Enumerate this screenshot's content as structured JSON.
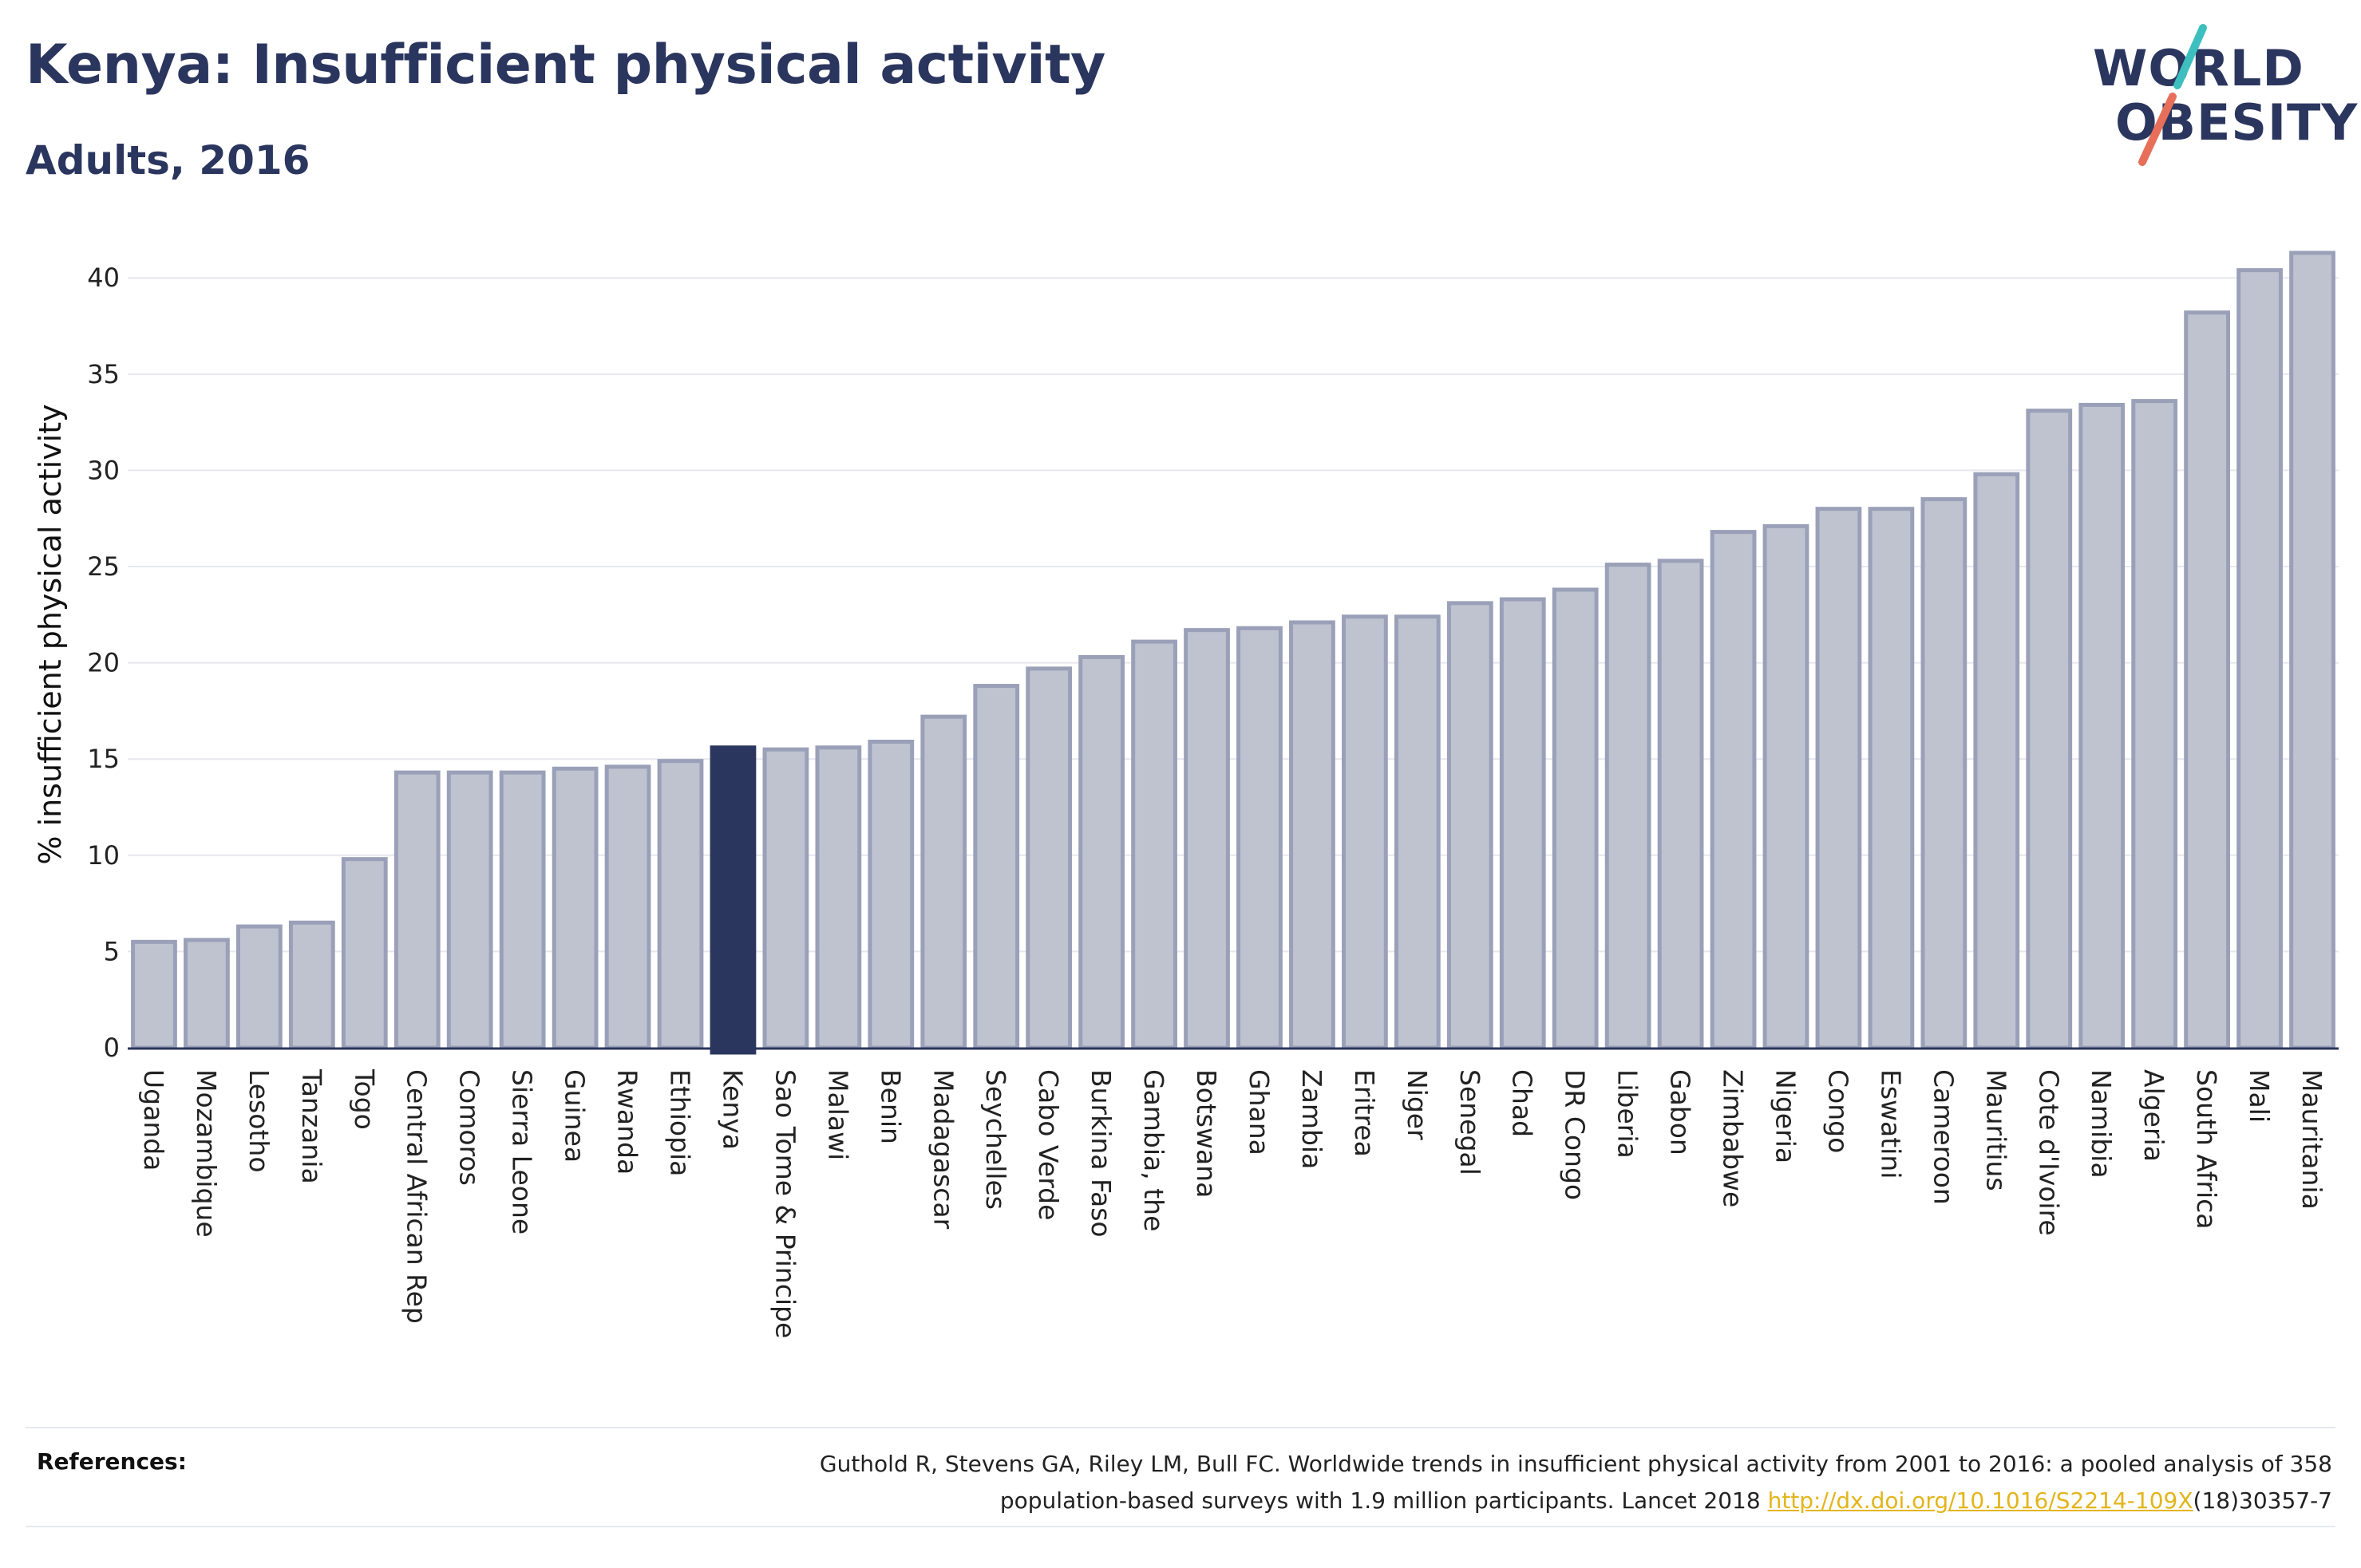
{
  "header": {
    "title": "Kenya: Insufficient physical activity",
    "subtitle": "Adults, 2016"
  },
  "logo": {
    "line1": "WORLD",
    "line2": "OBESITY",
    "slash_colors": [
      "#3dbfbf",
      "#e76f5a"
    ]
  },
  "colors": {
    "bar_default": "#bfc3d0",
    "bar_border": "#9aa0b8",
    "bar_highlight": "#2b365f",
    "grid": "#e6e8ee",
    "link": "#e3b51c"
  },
  "chart_data": {
    "type": "bar",
    "title": "Kenya: Insufficient physical activity",
    "subtitle": "Adults, 2016",
    "xlabel": "",
    "ylabel": "% insufficient physical activity",
    "ylim": [
      0,
      42
    ],
    "yticks": [
      0,
      5,
      10,
      15,
      20,
      25,
      30,
      35,
      40
    ],
    "grid": true,
    "highlight": "Kenya",
    "categories": [
      "Uganda",
      "Mozambique",
      "Lesotho",
      "Tanzania",
      "Togo",
      "Central African Rep",
      "Comoros",
      "Sierra Leone",
      "Guinea",
      "Rwanda",
      "Ethiopia",
      "Kenya",
      "Sao Tome & Principe",
      "Malawi",
      "Benin",
      "Madagascar",
      "Seychelles",
      "Cabo Verde",
      "Burkina Faso",
      "Gambia, the",
      "Botswana",
      "Ghana",
      "Zambia",
      "Eritrea",
      "Niger",
      "Senegal",
      "Chad",
      "DR Congo",
      "Liberia",
      "Gabon",
      "Zimbabwe",
      "Nigeria",
      "Congo",
      "Eswatini",
      "Cameroon",
      "Mauritius",
      "Cote d'Ivoire",
      "Namibia",
      "Algeria",
      "South Africa",
      "Mali",
      "Mauritania"
    ],
    "values": [
      5.5,
      5.6,
      6.3,
      6.5,
      9.8,
      14.3,
      14.3,
      14.3,
      14.5,
      14.6,
      14.9,
      15.6,
      15.5,
      15.6,
      15.9,
      17.2,
      18.8,
      19.7,
      20.3,
      21.1,
      21.7,
      21.8,
      22.1,
      22.4,
      22.4,
      23.1,
      23.3,
      23.8,
      25.1,
      25.3,
      26.8,
      27.1,
      28.0,
      28.0,
      28.5,
      29.8,
      33.1,
      33.4,
      33.6,
      38.2,
      40.4,
      41.3
    ]
  },
  "references": {
    "label": "References:",
    "text_line1": "Guthold R, Stevens GA, Riley LM, Bull FC. Worldwide trends in insufficient physical activity from 2001 to 2016: a pooled analysis of 358",
    "text_line2_prefix": "population-based surveys with 1.9 million participants. Lancet 2018 ",
    "link": "http://dx.doi.org/10.1016/S2214-109X",
    "text_line2_suffix": "(18)30357-7"
  }
}
